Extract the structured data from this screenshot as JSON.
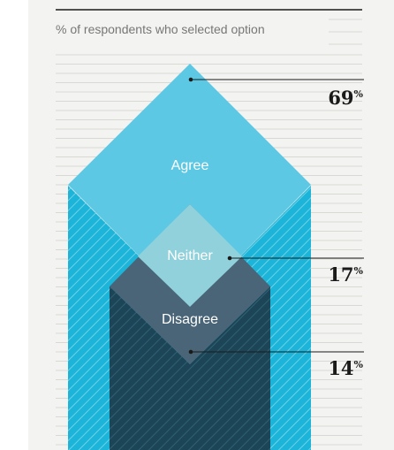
{
  "subtitle": "% of respondents who selected option",
  "colors": {
    "agree": "#5dc8e3",
    "agree_dark": "#1cb5d9",
    "neither": "#90d1db",
    "disagree": "#496577",
    "disagree_dark": "#1c4558",
    "background": "#f3f3f1",
    "rule": "#d9d9d4"
  },
  "chart_data": {
    "type": "area",
    "title": "",
    "subtitle": "% of respondents who selected option",
    "unit": "%",
    "categories": [
      "Agree",
      "Neither",
      "Disagree"
    ],
    "values": [
      69,
      17,
      14
    ],
    "value_labels": [
      "69",
      "17",
      "14"
    ],
    "grid": true
  }
}
